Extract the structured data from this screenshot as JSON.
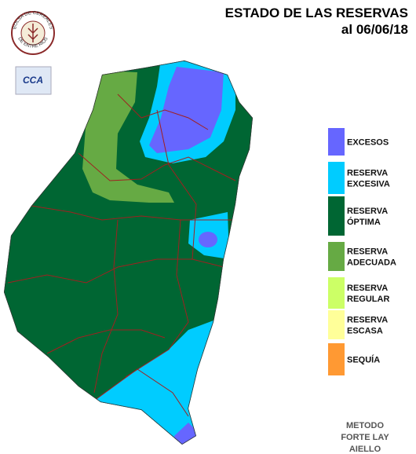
{
  "header": {
    "title": "ESTADO DE LAS RESERVAS",
    "date": "al  06/06/18"
  },
  "logo": {
    "top_text": "BOLSA DE CEREALES",
    "bottom_text": "DE ENTRE RIOS",
    "badge": "CCA"
  },
  "legend": [
    {
      "lines": [
        "EXCESOS"
      ],
      "color": "#6666ff"
    },
    {
      "lines": [
        "RESERVA",
        "EXCESIVA"
      ],
      "color": "#00ccff"
    },
    {
      "lines": [
        "RESERVA",
        "ÓPTIMA"
      ],
      "color": "#006633"
    },
    {
      "lines": [
        "RESERVA",
        "ADECUADA"
      ],
      "color": "#66aa44"
    },
    {
      "lines": [
        "RESERVA",
        "REGULAR"
      ],
      "color": "#ccff66"
    },
    {
      "lines": [
        "RESERVA",
        "ESCASA"
      ],
      "color": "#ffff99"
    },
    {
      "lines": [
        "SEQUÍA"
      ],
      "color": "#ff9933"
    }
  ],
  "method": [
    "METODO",
    "FORTE LAY",
    "AIELLO"
  ]
}
